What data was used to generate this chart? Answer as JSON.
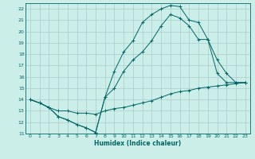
{
  "title": "",
  "xlabel": "Humidex (Indice chaleur)",
  "ylabel": "",
  "bg_color": "#cceee8",
  "grid_color": "#aacccc",
  "line_color": "#006666",
  "xlim": [
    -0.5,
    23.5
  ],
  "ylim": [
    11,
    22.5
  ],
  "xticks": [
    0,
    1,
    2,
    3,
    4,
    5,
    6,
    7,
    8,
    9,
    10,
    11,
    12,
    13,
    14,
    15,
    16,
    17,
    18,
    19,
    20,
    21,
    22,
    23
  ],
  "yticks": [
    11,
    12,
    13,
    14,
    15,
    16,
    17,
    18,
    19,
    20,
    21,
    22
  ],
  "line_top": {
    "x": [
      0,
      1,
      2,
      3,
      4,
      5,
      6,
      7,
      8,
      9,
      10,
      11,
      12,
      13,
      14,
      15,
      16,
      17,
      18,
      19,
      20,
      21,
      22,
      23
    ],
    "y": [
      14.0,
      13.7,
      13.3,
      12.5,
      12.2,
      11.8,
      11.5,
      11.1,
      14.2,
      16.5,
      18.2,
      19.2,
      20.8,
      21.5,
      22.0,
      22.3,
      22.2,
      21.0,
      20.8,
      19.3,
      16.3,
      15.5,
      15.5,
      15.5
    ]
  },
  "line_mid": {
    "x": [
      0,
      1,
      2,
      3,
      4,
      5,
      6,
      7,
      8,
      9,
      10,
      11,
      12,
      13,
      14,
      15,
      16,
      17,
      18,
      19,
      20,
      21,
      22,
      23
    ],
    "y": [
      14.0,
      13.7,
      13.3,
      12.5,
      12.2,
      11.8,
      11.5,
      11.1,
      14.2,
      15.0,
      16.5,
      17.5,
      18.2,
      19.2,
      20.5,
      21.5,
      21.2,
      20.5,
      19.3,
      19.3,
      17.5,
      16.3,
      15.5,
      15.5
    ]
  },
  "line_bot": {
    "x": [
      0,
      1,
      2,
      3,
      4,
      5,
      6,
      7,
      8,
      9,
      10,
      11,
      12,
      13,
      14,
      15,
      16,
      17,
      18,
      19,
      20,
      21,
      22,
      23
    ],
    "y": [
      14.0,
      13.7,
      13.3,
      13.0,
      13.0,
      12.8,
      12.8,
      12.7,
      13.0,
      13.2,
      13.3,
      13.5,
      13.7,
      13.9,
      14.2,
      14.5,
      14.7,
      14.8,
      15.0,
      15.1,
      15.2,
      15.3,
      15.4,
      15.5
    ]
  }
}
